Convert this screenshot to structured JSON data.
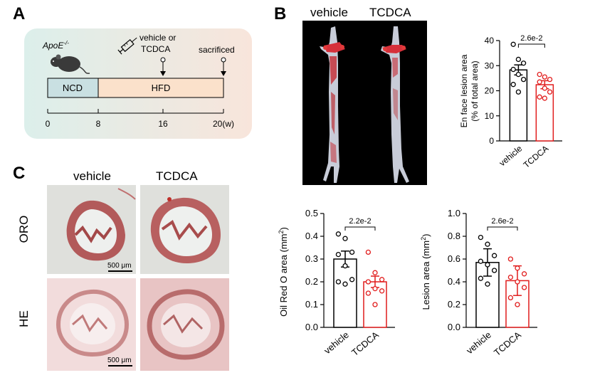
{
  "panels": {
    "a": {
      "label": "A",
      "mouse_label": "ApoE",
      "mouse_sup": "-/-",
      "treatment_text_1": "vehicle or",
      "treatment_text_2": "TCDCA",
      "sacrifice_text": "sacrificed",
      "ncd_label": "NCD",
      "hfd_label": "HFD",
      "timeline_ticks": [
        "0",
        "8",
        "16",
        "20(w)"
      ],
      "colors": {
        "ncd": "#c9e0e2",
        "hfd": "#fbe1cb",
        "background_start": "#dff0ec",
        "background_end": "#f8e6dc"
      }
    },
    "b": {
      "label": "B",
      "photo_titles": [
        "vehicle",
        "TCDCA"
      ],
      "colors": {
        "vehicle": "#000000",
        "tcdca": "#e11c1c"
      }
    },
    "c": {
      "label": "C",
      "column_titles": [
        "vehicle",
        "TCDCA"
      ],
      "row_labels": [
        "ORO",
        "HE"
      ],
      "scale_bar_label": "500 μm"
    }
  },
  "chart_data": [
    {
      "id": "en_face",
      "type": "bar",
      "ylabel_lines": [
        "En face lesion area",
        "(% of total area)"
      ],
      "ylim": [
        0,
        40
      ],
      "yticks": [
        "0",
        "10",
        "20",
        "30",
        "40"
      ],
      "categories": [
        "vehicle",
        "TCDCA"
      ],
      "values": [
        28.3,
        22.4
      ],
      "errors": [
        2.0,
        1.6
      ],
      "points": [
        [
          38.5,
          32.5,
          31,
          28.5,
          26.5,
          24.5,
          22.5,
          19.5
        ],
        [
          26.5,
          25.5,
          24.5,
          23.5,
          21,
          19.5,
          17.5,
          17
        ]
      ],
      "pvalue": "2.6e-2"
    },
    {
      "id": "oro",
      "type": "bar",
      "ylabel": "Oil Red O area (mm",
      "ylabel_sup": "2",
      "ylabel_end": ")",
      "ylim": [
        0,
        0.5
      ],
      "yticks": [
        "0.0",
        "0.1",
        "0.2",
        "0.3",
        "0.4",
        "0.5"
      ],
      "categories": [
        "vehicle",
        "TCDCA"
      ],
      "values": [
        0.3,
        0.2
      ],
      "errors": [
        0.035,
        0.025
      ],
      "points": [
        [
          0.41,
          0.39,
          0.33,
          0.32,
          0.27,
          0.21,
          0.2,
          0.19
        ],
        [
          0.33,
          0.24,
          0.21,
          0.2,
          0.17,
          0.16,
          0.15,
          0.1
        ]
      ],
      "pvalue": "2.2e-2"
    },
    {
      "id": "lesion",
      "type": "bar",
      "ylabel": "Lesion area (mm",
      "ylabel_sup": "2",
      "ylabel_end": ")",
      "ylim": [
        0,
        1.0
      ],
      "yticks": [
        "0.0",
        "0.2",
        "0.4",
        "0.6",
        "0.8",
        "1.0"
      ],
      "categories": [
        "vehicle",
        "TCDCA"
      ],
      "values": [
        0.57,
        0.41
      ],
      "errors": [
        0.12,
        0.13
      ],
      "points": [
        [
          0.79,
          0.73,
          0.63,
          0.58,
          0.55,
          0.5,
          0.43,
          0.38
        ],
        [
          0.6,
          0.52,
          0.47,
          0.44,
          0.4,
          0.35,
          0.26,
          0.2
        ]
      ],
      "pvalue": "2.6e-2"
    }
  ]
}
